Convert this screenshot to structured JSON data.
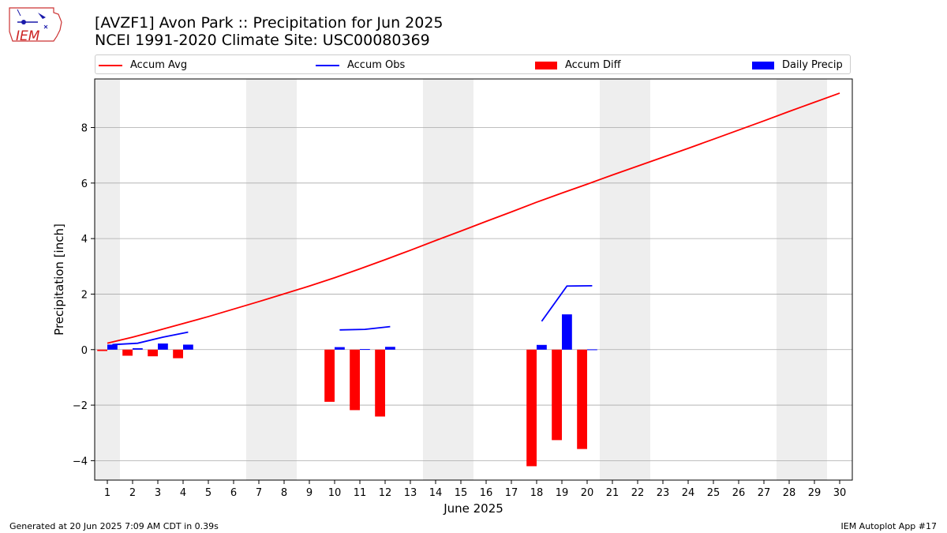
{
  "header": {
    "title": "[AVZF1] Avon Park :: Precipitation for Jun 2025",
    "subtitle": "NCEI 1991-2020 Climate Site: USC00080369",
    "logo_text": "IEM"
  },
  "legend": {
    "accum_avg": "Accum Avg",
    "accum_obs": "Accum Obs",
    "accum_diff": "Accum Diff",
    "daily_precip": "Daily Precip"
  },
  "footer": {
    "left": "Generated at 20 Jun 2025 7:09 AM CDT in 0.39s",
    "right": "IEM Autoplot App #17"
  },
  "colors": {
    "accum_avg": "#ff0000",
    "accum_obs": "#0000ff",
    "accum_diff": "#ff0000",
    "daily_precip": "#0000ff",
    "weekend_band": "#eeeeee",
    "grid": "#aaaaaa"
  },
  "chart_data": {
    "type": "bar",
    "xlabel": "June 2025",
    "ylabel": "Precipitation [inch]",
    "x": [
      1,
      2,
      3,
      4,
      5,
      6,
      7,
      8,
      9,
      10,
      11,
      12,
      13,
      14,
      15,
      16,
      17,
      18,
      19,
      20,
      21,
      22,
      23,
      24,
      25,
      26,
      27,
      28,
      29,
      30
    ],
    "xlim": [
      0.5,
      30.5
    ],
    "ylim": [
      -4.7,
      9.75
    ],
    "yticks": [
      -4,
      -2,
      0,
      2,
      4,
      6,
      8
    ],
    "grid": "horizontal",
    "legend_position": "top",
    "weekend_days": [
      1,
      7,
      8,
      14,
      15,
      21,
      22,
      28,
      29
    ],
    "series": [
      {
        "name": "Accum Avg",
        "kind": "line",
        "values": [
          0.23,
          0.45,
          0.69,
          0.94,
          1.19,
          1.46,
          1.73,
          2.01,
          2.29,
          2.59,
          2.91,
          3.24,
          3.58,
          3.93,
          4.27,
          4.62,
          4.96,
          5.31,
          5.64,
          5.96,
          6.29,
          6.61,
          6.93,
          7.25,
          7.58,
          7.91,
          8.24,
          8.58,
          8.91,
          9.24
        ]
      },
      {
        "name": "Accum Obs",
        "kind": "line",
        "values": [
          0.18,
          0.23,
          0.45,
          0.63,
          null,
          null,
          null,
          null,
          null,
          0.71,
          0.73,
          0.83,
          null,
          null,
          null,
          null,
          null,
          1.02,
          2.29,
          2.3,
          null,
          null,
          null,
          null,
          null,
          null,
          null,
          null,
          null,
          null
        ]
      },
      {
        "name": "Accum Diff",
        "kind": "bar",
        "values": [
          -0.05,
          -0.22,
          -0.24,
          -0.31,
          null,
          null,
          null,
          null,
          null,
          -1.88,
          -2.18,
          -2.41,
          null,
          null,
          null,
          null,
          null,
          -4.2,
          -3.26,
          -3.58,
          null,
          null,
          null,
          null,
          null,
          null,
          null,
          null,
          null,
          null
        ]
      },
      {
        "name": "Daily Precip",
        "kind": "bar",
        "values": [
          0.18,
          0.05,
          0.22,
          0.18,
          null,
          null,
          null,
          null,
          null,
          0.09,
          0.02,
          0.1,
          null,
          null,
          null,
          null,
          null,
          0.17,
          1.27,
          0.01,
          null,
          null,
          null,
          null,
          null,
          null,
          null,
          null,
          null,
          null
        ]
      }
    ]
  }
}
